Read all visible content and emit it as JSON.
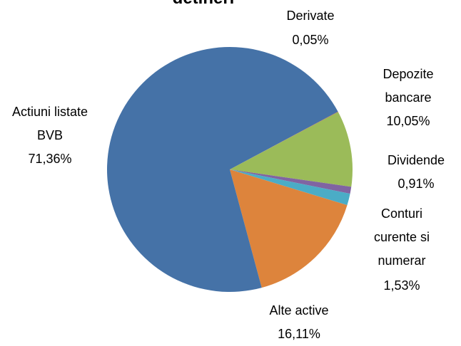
{
  "chart_data": {
    "type": "pie",
    "title": "detineri",
    "categories": [
      "Derivate",
      "Depozite bancare",
      "Dividende",
      "Conturi curente si numerar",
      "Alte active",
      "Actiuni listate BVB"
    ],
    "values": [
      0.05,
      10.05,
      0.91,
      1.53,
      16.11,
      71.36
    ],
    "value_labels": [
      "0,05%",
      "10,05%",
      "0,91%",
      "1,53%",
      "16,11%",
      "71,36%"
    ],
    "colors": [
      "#be4b48",
      "#9bbb59",
      "#8064a2",
      "#4bacc6",
      "#dd843c",
      "#4572a7"
    ]
  }
}
